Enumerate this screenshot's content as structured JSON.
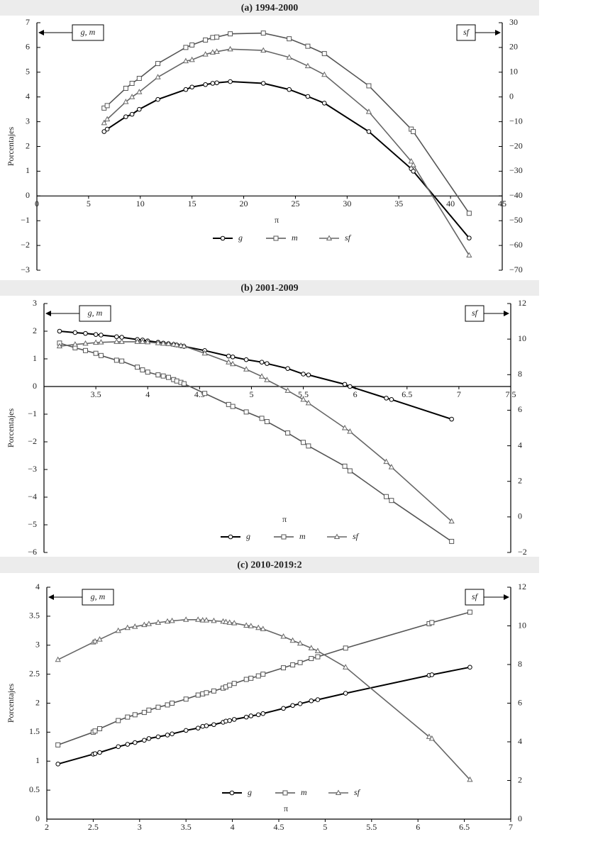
{
  "chart_data": [
    {
      "type": "line",
      "title": "(a) 1994-2000",
      "xlabel": "π",
      "ylabel": "Porcentajes",
      "left_axis_note": "g, m",
      "right_axis_note": "sf",
      "x": [
        6.5,
        6.8,
        8.6,
        9.2,
        9.9,
        11.7,
        14.4,
        15,
        16.3,
        17,
        17.4,
        18.7,
        21.9,
        24.4,
        26.2,
        27.8,
        32.1,
        36.2,
        36.4,
        41.8
      ],
      "xlim": [
        0,
        45
      ],
      "xticks": [
        0,
        5,
        10,
        15,
        20,
        25,
        30,
        35,
        40,
        45
      ],
      "ylim": [
        -3,
        7
      ],
      "yticks": [
        {
          "value": -3,
          "label": "−3"
        },
        {
          "value": -2,
          "label": "−2"
        },
        {
          "value": -1,
          "label": "−1"
        },
        0,
        1,
        2,
        3,
        4,
        5,
        6,
        7
      ],
      "y2lim": [
        -70,
        30
      ],
      "y2ticks": [
        {
          "value": -70,
          "label": "−70"
        },
        {
          "value": -60,
          "label": "−60"
        },
        {
          "value": -50,
          "label": "−50"
        },
        {
          "value": -40,
          "label": "−40"
        },
        {
          "value": -30,
          "label": "−30"
        },
        {
          "value": -20,
          "label": "−20"
        },
        {
          "value": -10,
          "label": "−10"
        },
        0,
        10,
        20,
        30
      ],
      "series": [
        {
          "name": "g",
          "color": "#000000",
          "marker": "circle",
          "values": [
            2.6,
            2.7,
            3.2,
            3.3,
            3.5,
            3.9,
            4.3,
            4.4,
            4.5,
            4.55,
            4.57,
            4.62,
            4.55,
            4.3,
            4.02,
            3.75,
            2.6,
            1.1,
            1.0,
            -1.7
          ]
        },
        {
          "name": "m",
          "color": "#555555",
          "marker": "square",
          "values": [
            3.55,
            3.65,
            4.35,
            4.55,
            4.75,
            5.35,
            6.0,
            6.1,
            6.3,
            6.4,
            6.42,
            6.55,
            6.58,
            6.35,
            6.05,
            5.75,
            4.45,
            2.7,
            2.6,
            -0.7
          ]
        },
        {
          "name": "sf",
          "color": "#666666",
          "marker": "triangle",
          "axis": "y2",
          "values": [
            -10.5,
            -9,
            -2,
            0,
            2,
            8,
            14.5,
            15,
            17.2,
            18,
            18.3,
            19.3,
            18.8,
            16,
            12.5,
            9,
            -6,
            -26,
            -27.5,
            -64
          ]
        }
      ]
    },
    {
      "type": "line",
      "title": "(b) 2001-2009",
      "xlabel": "π",
      "ylabel": "Porcentajes",
      "left_axis_note": "g, m",
      "right_axis_note": "sf",
      "x": [
        3.15,
        3.3,
        3.4,
        3.5,
        3.55,
        3.7,
        3.75,
        3.9,
        3.95,
        4.0,
        4.1,
        4.15,
        4.2,
        4.25,
        4.28,
        4.32,
        4.35,
        4.55,
        4.78,
        4.82,
        4.95,
        5.1,
        5.15,
        5.35,
        5.5,
        5.55,
        5.9,
        5.95,
        6.3,
        6.35,
        6.93
      ],
      "xlim": [
        3,
        7.5
      ],
      "xticks": [
        3.5,
        4,
        4.5,
        5,
        5.5,
        6,
        6.5,
        7,
        7.5
      ],
      "ylim": [
        -6,
        3
      ],
      "yticks": [
        {
          "value": -6,
          "label": "−6"
        },
        {
          "value": -5,
          "label": "−5"
        },
        {
          "value": -4,
          "label": "−4"
        },
        {
          "value": -3,
          "label": "−3"
        },
        {
          "value": -2,
          "label": "−2"
        },
        {
          "value": -1,
          "label": "−1"
        },
        0,
        1,
        2,
        3
      ],
      "y2lim": [
        -2,
        12
      ],
      "y2ticks": [
        {
          "value": -2,
          "label": "−2"
        },
        0,
        2,
        4,
        6,
        8,
        10,
        12
      ],
      "series": [
        {
          "name": "g",
          "color": "#000000",
          "marker": "circle",
          "values": [
            2.0,
            1.95,
            1.92,
            1.88,
            1.86,
            1.8,
            1.78,
            1.7,
            1.68,
            1.65,
            1.6,
            1.57,
            1.55,
            1.52,
            1.5,
            1.47,
            1.45,
            1.3,
            1.1,
            1.07,
            0.97,
            0.88,
            0.83,
            0.65,
            0.45,
            0.42,
            0.08,
            0.0,
            -0.42,
            -0.47,
            -1.18
          ]
        },
        {
          "name": "m",
          "color": "#555555",
          "marker": "square",
          "values": [
            1.57,
            1.4,
            1.3,
            1.2,
            1.12,
            0.95,
            0.92,
            0.7,
            0.6,
            0.52,
            0.42,
            0.38,
            0.33,
            0.25,
            0.2,
            0.15,
            0.1,
            -0.25,
            -0.65,
            -0.72,
            -0.92,
            -1.15,
            -1.27,
            -1.68,
            -2.02,
            -2.15,
            -2.88,
            -3.05,
            -3.98,
            -4.12,
            -5.6
          ]
        },
        {
          "name": "sf",
          "color": "#666666",
          "marker": "triangle",
          "axis": "y2",
          "values": [
            9.6,
            9.7,
            9.75,
            9.8,
            9.82,
            9.85,
            9.85,
            9.85,
            9.85,
            9.83,
            9.78,
            9.75,
            9.73,
            9.7,
            9.67,
            9.63,
            9.6,
            9.2,
            8.7,
            8.6,
            8.3,
            7.9,
            7.7,
            7.1,
            6.6,
            6.4,
            5.0,
            4.8,
            3.1,
            2.8,
            -0.25
          ]
        }
      ]
    },
    {
      "type": "line",
      "title": "(c) 2010-2019:2",
      "xlabel": "π",
      "ylabel": "Porcentajes",
      "left_axis_note": "g, m",
      "right_axis_note": "sf",
      "x": [
        2.12,
        2.5,
        2.52,
        2.57,
        2.77,
        2.87,
        2.95,
        3.05,
        3.1,
        3.2,
        3.3,
        3.35,
        3.5,
        3.63,
        3.68,
        3.72,
        3.8,
        3.9,
        3.93,
        3.97,
        4.02,
        4.15,
        4.2,
        4.28,
        4.33,
        4.55,
        4.65,
        4.73,
        4.85,
        4.92,
        5.22,
        6.12,
        6.15,
        6.56
      ],
      "xlim": [
        2,
        7
      ],
      "xticks": [
        2,
        2.5,
        3,
        3.5,
        4,
        4.5,
        5,
        5.5,
        6,
        6.5,
        7
      ],
      "ylim": [
        0,
        4
      ],
      "yticks": [
        0,
        0.5,
        1,
        1.5,
        2,
        2.5,
        3,
        3.5,
        4
      ],
      "y2lim": [
        0,
        12
      ],
      "y2ticks": [
        0,
        2,
        4,
        6,
        8,
        10,
        12
      ],
      "series": [
        {
          "name": "g",
          "color": "#000000",
          "marker": "circle",
          "values": [
            0.95,
            1.12,
            1.13,
            1.15,
            1.25,
            1.29,
            1.32,
            1.36,
            1.39,
            1.42,
            1.45,
            1.47,
            1.53,
            1.57,
            1.6,
            1.61,
            1.63,
            1.67,
            1.69,
            1.7,
            1.72,
            1.76,
            1.78,
            1.8,
            1.82,
            1.91,
            1.96,
            1.99,
            2.04,
            2.06,
            2.17,
            2.48,
            2.49,
            2.62
          ]
        },
        {
          "name": "m",
          "color": "#555555",
          "marker": "square",
          "values": [
            1.28,
            1.5,
            1.52,
            1.56,
            1.7,
            1.76,
            1.8,
            1.84,
            1.88,
            1.93,
            1.97,
            2.0,
            2.07,
            2.14,
            2.16,
            2.18,
            2.21,
            2.26,
            2.28,
            2.31,
            2.34,
            2.41,
            2.43,
            2.47,
            2.5,
            2.61,
            2.66,
            2.7,
            2.77,
            2.8,
            2.95,
            3.37,
            3.39,
            3.57
          ]
        },
        {
          "name": "sf",
          "color": "#666666",
          "marker": "triangle",
          "axis": "y2",
          "values": [
            8.25,
            9.15,
            9.2,
            9.3,
            9.75,
            9.9,
            9.96,
            10.05,
            10.1,
            10.17,
            10.23,
            10.26,
            10.32,
            10.32,
            10.29,
            10.29,
            10.26,
            10.23,
            10.2,
            10.17,
            10.14,
            10.02,
            9.99,
            9.9,
            9.84,
            9.45,
            9.24,
            9.09,
            8.85,
            8.7,
            7.86,
            4.26,
            4.17,
            2.04
          ]
        }
      ]
    }
  ]
}
